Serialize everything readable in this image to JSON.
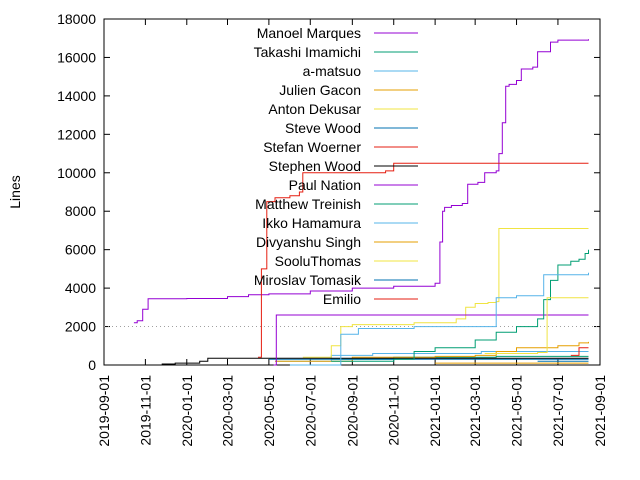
{
  "chart_data": {
    "type": "line",
    "title": "",
    "xlabel": "",
    "ylabel": "Lines",
    "xlim": [
      "2019-09-01",
      "2021-09-01"
    ],
    "ylim": [
      0,
      18000
    ],
    "x_ticks": [
      "2019-09-01",
      "2019-11-01",
      "2020-01-01",
      "2020-03-01",
      "2020-05-01",
      "2020-07-01",
      "2020-09-01",
      "2020-11-01",
      "2021-01-01",
      "2021-03-01",
      "2021-05-01",
      "2021-07-01",
      "2021-09-01"
    ],
    "y_ticks": [
      0,
      2000,
      4000,
      6000,
      8000,
      10000,
      12000,
      14000,
      16000,
      18000
    ],
    "grid": "off",
    "legend_position": "top-left",
    "reference_line": {
      "y": 2000,
      "style": "dotted",
      "color": "#a0a0a0"
    },
    "series": [
      {
        "name": "Manoel Marques",
        "color": "#9400d3",
        "points": [
          [
            "2019-10-15",
            2200
          ],
          [
            "2019-10-20",
            2300
          ],
          [
            "2019-10-28",
            2900
          ],
          [
            "2019-11-05",
            3450
          ],
          [
            "2019-12-01",
            3450
          ],
          [
            "2020-01-01",
            3460
          ],
          [
            "2020-03-01",
            3560
          ],
          [
            "2020-04-01",
            3650
          ],
          [
            "2020-05-01",
            3700
          ],
          [
            "2020-07-01",
            3850
          ],
          [
            "2020-09-01",
            4000
          ],
          [
            "2020-11-01",
            4100
          ],
          [
            "2021-01-01",
            4250
          ],
          [
            "2021-01-05",
            4250
          ],
          [
            "2021-01-08",
            6400
          ],
          [
            "2021-01-12",
            8000
          ],
          [
            "2021-01-15",
            8200
          ],
          [
            "2021-01-25",
            8300
          ],
          [
            "2021-02-10",
            8400
          ],
          [
            "2021-02-18",
            9400
          ],
          [
            "2021-03-05",
            9500
          ],
          [
            "2021-03-15",
            10000
          ],
          [
            "2021-04-01",
            10100
          ],
          [
            "2021-04-05",
            11000
          ],
          [
            "2021-04-10",
            12600
          ],
          [
            "2021-04-15",
            14500
          ],
          [
            "2021-04-20",
            14600
          ],
          [
            "2021-05-01",
            14800
          ],
          [
            "2021-05-08",
            15400
          ],
          [
            "2021-05-25",
            15500
          ],
          [
            "2021-06-01",
            16300
          ],
          [
            "2021-06-20",
            16800
          ],
          [
            "2021-07-01",
            16900
          ],
          [
            "2021-08-15",
            16950
          ]
        ]
      },
      {
        "name": "Takashi Imamichi",
        "color": "#009e73",
        "points": [
          [
            "2020-08-01",
            300
          ],
          [
            "2020-11-01",
            400
          ],
          [
            "2021-01-01",
            400
          ],
          [
            "2021-04-01",
            450
          ],
          [
            "2021-08-15",
            450
          ]
        ]
      },
      {
        "name": "a-matsuo",
        "color": "#56b4e9",
        "points": [
          [
            "2020-05-10",
            200
          ],
          [
            "2020-08-01",
            500
          ],
          [
            "2020-10-01",
            600
          ],
          [
            "2021-01-01",
            600
          ],
          [
            "2021-03-10",
            700
          ],
          [
            "2021-04-01",
            700
          ],
          [
            "2021-08-15",
            700
          ]
        ]
      },
      {
        "name": "Julien Gacon",
        "color": "#e69f00",
        "points": [
          [
            "2020-05-10",
            200
          ],
          [
            "2020-09-01",
            400
          ],
          [
            "2021-01-01",
            450
          ],
          [
            "2021-03-01",
            500
          ],
          [
            "2021-04-01",
            700
          ],
          [
            "2021-05-01",
            900
          ],
          [
            "2021-07-01",
            1000
          ],
          [
            "2021-08-01",
            1150
          ],
          [
            "2021-08-15",
            1200
          ]
        ]
      },
      {
        "name": "Anton Dekusar",
        "color": "#f0e442",
        "points": [
          [
            "2020-06-20",
            400
          ],
          [
            "2020-08-01",
            1000
          ],
          [
            "2020-08-15",
            2000
          ],
          [
            "2020-09-01",
            2100
          ],
          [
            "2020-12-01",
            2200
          ],
          [
            "2021-02-01",
            2400
          ],
          [
            "2021-02-15",
            3000
          ],
          [
            "2021-03-01",
            3200
          ],
          [
            "2021-03-20",
            3250
          ],
          [
            "2021-04-01",
            3300
          ],
          [
            "2021-04-05",
            7100
          ],
          [
            "2021-08-15",
            7100
          ]
        ]
      },
      {
        "name": "Steve Wood",
        "color": "#0072b2",
        "points": [
          [
            "2020-05-01",
            300
          ],
          [
            "2021-01-01",
            300
          ],
          [
            "2021-08-15",
            300
          ]
        ]
      },
      {
        "name": "Stefan Woerner",
        "color": "#e51e10",
        "points": [
          [
            "2020-04-15",
            400
          ],
          [
            "2020-04-20",
            5000
          ],
          [
            "2020-04-28",
            8500
          ],
          [
            "2020-05-10",
            8700
          ],
          [
            "2020-06-01",
            8800
          ],
          [
            "2020-06-15",
            9000
          ],
          [
            "2020-06-20",
            10000
          ],
          [
            "2020-10-20",
            10100
          ],
          [
            "2020-11-01",
            10500
          ],
          [
            "2021-08-15",
            10500
          ]
        ]
      },
      {
        "name": "Stephen Wood",
        "color": "#000000",
        "points": [
          [
            "2019-11-25",
            50
          ],
          [
            "2019-12-15",
            100
          ],
          [
            "2020-01-20",
            200
          ],
          [
            "2020-02-01",
            350
          ],
          [
            "2020-03-01",
            350
          ],
          [
            "2020-03-15",
            350
          ],
          [
            "2020-05-01",
            350
          ],
          [
            "2021-08-15",
            350
          ]
        ]
      },
      {
        "name": "Paul Nation",
        "color": "#9400d3",
        "points": [
          [
            "2020-05-08",
            0
          ],
          [
            "2020-05-12",
            2600
          ],
          [
            "2021-08-15",
            2600
          ]
        ]
      },
      {
        "name": "Matthew Treinish",
        "color": "#009e73",
        "points": [
          [
            "2020-08-01",
            200
          ],
          [
            "2020-11-01",
            300
          ],
          [
            "2020-12-01",
            700
          ],
          [
            "2021-01-01",
            900
          ],
          [
            "2021-03-01",
            1300
          ],
          [
            "2021-04-01",
            1700
          ],
          [
            "2021-05-01",
            2000
          ],
          [
            "2021-06-01",
            2400
          ],
          [
            "2021-06-10",
            3400
          ],
          [
            "2021-06-20",
            4400
          ],
          [
            "2021-07-01",
            5200
          ],
          [
            "2021-07-20",
            5400
          ],
          [
            "2021-08-01",
            5500
          ],
          [
            "2021-08-10",
            5800
          ],
          [
            "2021-08-15",
            6000
          ]
        ]
      },
      {
        "name": "Ikko Hamamura",
        "color": "#56b4e9",
        "points": [
          [
            "2020-06-01",
            0
          ],
          [
            "2020-08-15",
            1600
          ],
          [
            "2020-09-10",
            1900
          ],
          [
            "2020-12-01",
            2000
          ],
          [
            "2021-03-25",
            2000
          ],
          [
            "2021-04-01",
            3500
          ],
          [
            "2021-05-01",
            3600
          ],
          [
            "2021-06-10",
            4700
          ],
          [
            "2021-08-15",
            4800
          ]
        ]
      },
      {
        "name": "Divyanshu Singh",
        "color": "#e69f00",
        "points": [
          [
            "2021-01-01",
            100
          ],
          [
            "2021-08-15",
            100
          ]
        ]
      },
      {
        "name": "SooluThomas",
        "color": "#f0e442",
        "points": [
          [
            "2021-03-15",
            600
          ],
          [
            "2021-05-01",
            600
          ],
          [
            "2021-06-01",
            650
          ],
          [
            "2021-06-15",
            3500
          ],
          [
            "2021-08-15",
            3500
          ]
        ]
      },
      {
        "name": "Miroslav Tomasik",
        "color": "#0072b2",
        "points": [
          [
            "2021-06-01",
            200
          ],
          [
            "2021-08-15",
            200
          ]
        ]
      },
      {
        "name": "Emilio",
        "color": "#e51e10",
        "points": [
          [
            "2021-07-20",
            500
          ],
          [
            "2021-08-01",
            900
          ],
          [
            "2021-08-15",
            900
          ]
        ]
      }
    ]
  }
}
